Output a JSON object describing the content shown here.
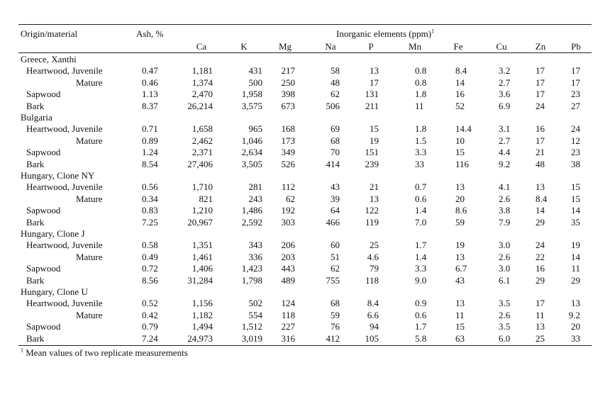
{
  "table": {
    "header": {
      "origin": "Origin/material",
      "ash": "Ash, %",
      "inorganic": "Inorganic elements (ppm)",
      "inorganic_sup": "1",
      "elements": [
        "Ca",
        "K",
        "Mg",
        "Na",
        "P",
        "Mn",
        "Fe",
        "Cu",
        "Zn",
        "Pb"
      ]
    },
    "groups": [
      {
        "origin": "Greece, Xanthi",
        "rows": [
          {
            "label": "Heartwood, Juvenile",
            "ash": "0.47",
            "values": [
              "1,181",
              "431",
              "217",
              "58",
              "13",
              "0.8",
              "8.4",
              "3.2",
              "17",
              "17"
            ]
          },
          {
            "label": "Mature",
            "ash": "0.46",
            "values": [
              "1,374",
              "500",
              "250",
              "48",
              "17",
              "0.8",
              "14",
              "2.7",
              "17",
              "17"
            ]
          },
          {
            "label": "Sapwood",
            "ash": "1.13",
            "values": [
              "2,470",
              "1,958",
              "398",
              "62",
              "131",
              "1.8",
              "16",
              "3.6",
              "17",
              "23"
            ]
          },
          {
            "label": "Bark",
            "ash": "8.37",
            "values": [
              "26,214",
              "3,575",
              "673",
              "506",
              "211",
              "11",
              "52",
              "6.9",
              "24",
              "27"
            ]
          }
        ]
      },
      {
        "origin": "Bulgaria",
        "rows": [
          {
            "label": "Heartwood, Juvenile",
            "ash": "0.71",
            "values": [
              "1,658",
              "965",
              "168",
              "69",
              "15",
              "1.8",
              "14.4",
              "3.1",
              "16",
              "24"
            ]
          },
          {
            "label": "Mature",
            "ash": "0.89",
            "values": [
              "2,462",
              "1,046",
              "173",
              "68",
              "19",
              "1.5",
              "10",
              "2.7",
              "17",
              "12"
            ]
          },
          {
            "label": "Sapwood",
            "ash": "1.24",
            "values": [
              "2,371",
              "2,634",
              "349",
              "70",
              "151",
              "3.3",
              "15",
              "4.4",
              "21",
              "23"
            ]
          },
          {
            "label": "Bark",
            "ash": "8.54",
            "values": [
              "27,406",
              "3,505",
              "526",
              "414",
              "239",
              "33",
              "116",
              "9.2",
              "48",
              "38"
            ]
          }
        ]
      },
      {
        "origin": "Hungary, Clone NY",
        "rows": [
          {
            "label": "Heartwood, Juvenile",
            "ash": "0.56",
            "values": [
              "1,710",
              "281",
              "112",
              "43",
              "21",
              "0.7",
              "13",
              "4.1",
              "13",
              "15"
            ]
          },
          {
            "label": "Mature",
            "ash": "0.34",
            "values": [
              "821",
              "243",
              "62",
              "39",
              "13",
              "0.6",
              "20",
              "2.6",
              "8.4",
              "15"
            ]
          },
          {
            "label": "Sapwood",
            "ash": "0.83",
            "values": [
              "1,210",
              "1,486",
              "192",
              "64",
              "122",
              "1.4",
              "8.6",
              "3.8",
              "14",
              "14"
            ]
          },
          {
            "label": "Bark",
            "ash": "7.25",
            "values": [
              "20,967",
              "2,592",
              "303",
              "466",
              "119",
              "7.0",
              "59",
              "7.9",
              "29",
              "35"
            ]
          }
        ]
      },
      {
        "origin": "Hungary, Clone J",
        "rows": [
          {
            "label": "Heartwood, Juvenile",
            "ash": "0.58",
            "values": [
              "1,351",
              "343",
              "206",
              "60",
              "25",
              "1.7",
              "19",
              "3.0",
              "24",
              "19"
            ]
          },
          {
            "label": "Mature",
            "ash": "0.49",
            "values": [
              "1,461",
              "336",
              "203",
              "51",
              "4.6",
              "1.4",
              "13",
              "2.6",
              "22",
              "14"
            ]
          },
          {
            "label": "Sapwood",
            "ash": "0.72",
            "values": [
              "1,406",
              "1,423",
              "443",
              "62",
              "79",
              "3.3",
              "6.7",
              "3.0",
              "16",
              "11"
            ]
          },
          {
            "label": "Bark",
            "ash": "8.56",
            "values": [
              "31,284",
              "1,798",
              "489",
              "755",
              "118",
              "9.0",
              "43",
              "6.1",
              "29",
              "29"
            ]
          }
        ]
      },
      {
        "origin": "Hungary, Clone U",
        "rows": [
          {
            "label": "Heartwood, Juvenile",
            "ash": "0.52",
            "values": [
              "1,156",
              "502",
              "124",
              "68",
              "8.4",
              "0.9",
              "13",
              "3.5",
              "17",
              "13"
            ]
          },
          {
            "label": "Mature",
            "ash": "0.42",
            "values": [
              "1,182",
              "554",
              "118",
              "59",
              "6.6",
              "0.6",
              "11",
              "2.6",
              "11",
              "9.2"
            ]
          },
          {
            "label": "Sapwood",
            "ash": "0.79",
            "values": [
              "1,494",
              "1,512",
              "227",
              "76",
              "94",
              "1.7",
              "15",
              "3.5",
              "13",
              "20"
            ]
          },
          {
            "label": "Bark",
            "ash": "7.24",
            "values": [
              "24,973",
              "3,019",
              "316",
              "412",
              "105",
              "5.8",
              "63",
              "6.0",
              "25",
              "33"
            ]
          }
        ]
      }
    ],
    "footnote": {
      "mark": "1",
      "text": "Mean values of two replicate measurements"
    }
  }
}
